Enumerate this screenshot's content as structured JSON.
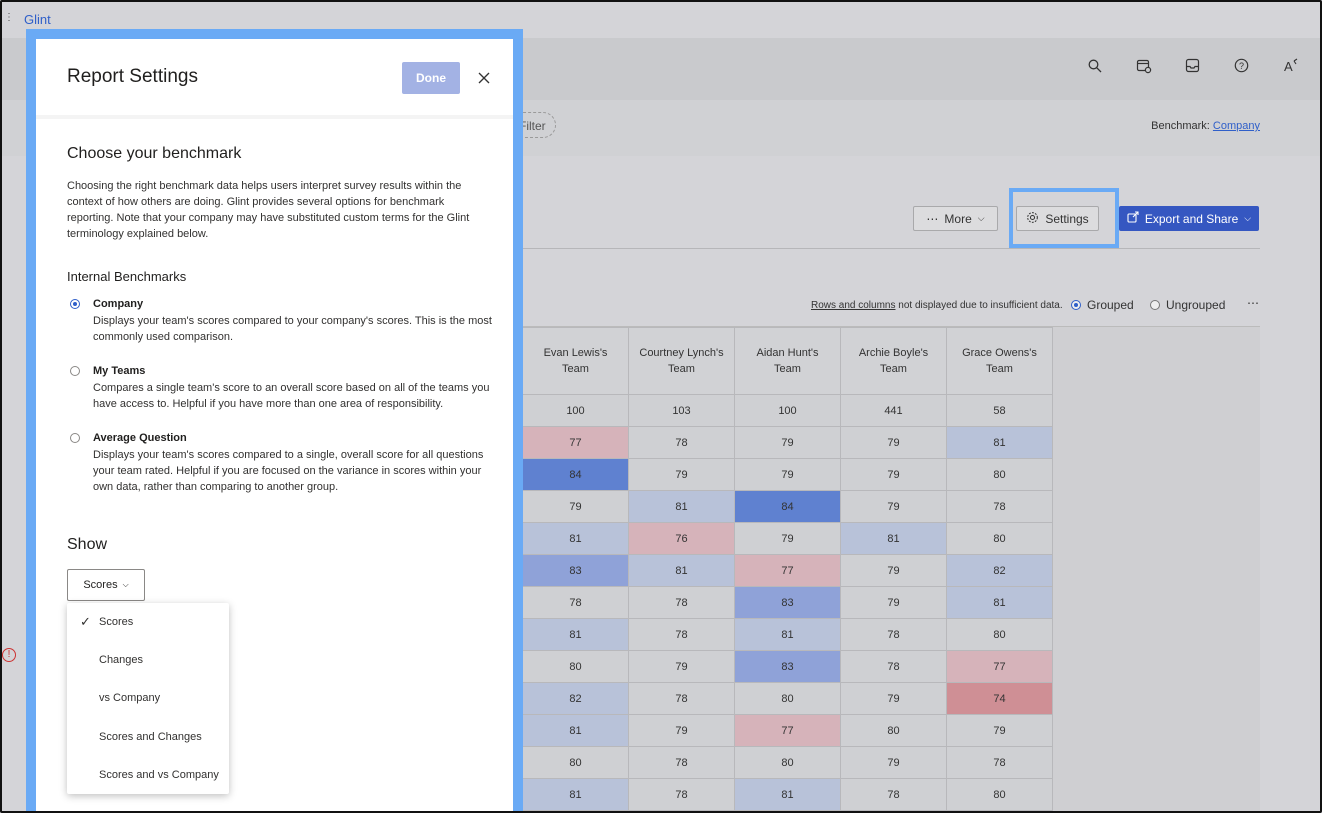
{
  "app": {
    "brand": "Glint"
  },
  "filterbar": {
    "filter_label": "Filter",
    "benchmark_label": "Benchmark:",
    "benchmark_value": "Company"
  },
  "toolbar": {
    "more_label": "More",
    "settings_label": "Settings",
    "export_label": "Export and Share"
  },
  "view": {
    "rows_note_link": "Rows and columns",
    "rows_note_text": "not displayed due to insufficient data.",
    "grouped_label": "Grouped",
    "ungrouped_label": "Ungrouped",
    "selected": "Grouped"
  },
  "heatmap": {
    "columns": [
      "Evan Lewis's Team",
      "Courtney Lynch's Team",
      "Aidan Hunt's Team",
      "Archie Boyle's Team",
      "Grace Owens's Team"
    ],
    "rows": [
      [
        "100",
        "103",
        "100",
        "441",
        "58"
      ],
      [
        "77",
        "78",
        "79",
        "79",
        "81"
      ],
      [
        "84",
        "79",
        "79",
        "79",
        "80"
      ],
      [
        "79",
        "81",
        "84",
        "79",
        "78"
      ],
      [
        "81",
        "76",
        "79",
        "81",
        "80"
      ],
      [
        "83",
        "81",
        "77",
        "79",
        "82"
      ],
      [
        "78",
        "78",
        "83",
        "79",
        "81"
      ],
      [
        "81",
        "78",
        "81",
        "78",
        "80"
      ],
      [
        "80",
        "79",
        "83",
        "78",
        "77"
      ],
      [
        "82",
        "78",
        "80",
        "79",
        "74"
      ],
      [
        "81",
        "79",
        "77",
        "80",
        "79"
      ],
      [
        "80",
        "78",
        "80",
        "79",
        "78"
      ],
      [
        "81",
        "78",
        "81",
        "78",
        "80"
      ]
    ],
    "shades": [
      [
        "n",
        "n",
        "n",
        "n",
        "n"
      ],
      [
        "r1",
        "n",
        "n",
        "n",
        "b1"
      ],
      [
        "b3",
        "n",
        "n",
        "n",
        "n"
      ],
      [
        "n",
        "b1",
        "b3",
        "n",
        "n"
      ],
      [
        "b1",
        "r1",
        "n",
        "b1",
        "n"
      ],
      [
        "b2",
        "b1",
        "r1",
        "n",
        "b1"
      ],
      [
        "n",
        "n",
        "b2",
        "n",
        "b1"
      ],
      [
        "b1",
        "n",
        "b1",
        "n",
        "n"
      ],
      [
        "n",
        "n",
        "b2",
        "n",
        "r1"
      ],
      [
        "b1",
        "n",
        "n",
        "n",
        "r2"
      ],
      [
        "b1",
        "n",
        "r1",
        "n",
        "n"
      ],
      [
        "n",
        "n",
        "n",
        "n",
        "n"
      ],
      [
        "b1",
        "n",
        "b1",
        "n",
        "n"
      ]
    ]
  },
  "panel": {
    "title": "Report Settings",
    "done_label": "Done",
    "benchmark_title": "Choose your benchmark",
    "benchmark_desc": "Choosing the right benchmark data helps users interpret survey results within the context of how others are doing. Glint provides several options for benchmark reporting. Note that your company may have substituted custom terms for the Glint terminology explained below.",
    "internal_title": "Internal Benchmarks",
    "options": [
      {
        "label": "Company",
        "desc": "Displays your team's scores compared to your company's scores. This is the most commonly used comparison.",
        "selected": true
      },
      {
        "label": "My Teams",
        "desc": "Compares a single team's score to an overall score based on all of the teams you have access to. Helpful if you have more than one area of responsibility.",
        "selected": false
      },
      {
        "label": "Average Question",
        "desc": "Displays your team's scores compared to a single, overall score for all questions your team rated. Helpful if you are focused on the variance in scores within your own data, rather than comparing to another group.",
        "selected": false
      }
    ],
    "show_title": "Show",
    "show_value": "Scores",
    "show_options": [
      "Scores",
      "Changes",
      "vs Company",
      "Scores and Changes",
      "Scores and vs Company"
    ]
  },
  "colors": {
    "accent": "#3557c1",
    "highlight": "#6aaaf5"
  }
}
